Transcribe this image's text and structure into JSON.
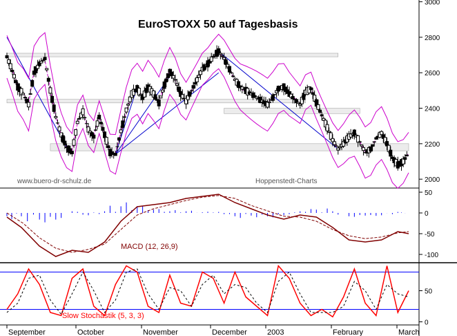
{
  "chart_data": [
    {
      "type": "candlestick",
      "title": "EuroSTOXX 50 auf Tagesbasis",
      "watermarks": [
        "www.buero-dr-schulz.de",
        "Hoppenstedt-Charts"
      ],
      "y_ticks": [
        "3000",
        "2800",
        "2600",
        "2400",
        "2200",
        "2000"
      ],
      "ylim": [
        1950,
        3010
      ],
      "x_labels": [
        "September",
        "October",
        "November",
        "December",
        "2003",
        "February",
        "March"
      ],
      "indicators": [
        "Bollinger Bands",
        "Moving Average",
        "Trendlines",
        "Support/Resistance Zones"
      ],
      "colors": {
        "candle": "#000000",
        "bollinger": "#cc00cc",
        "trendline": "#0000cc",
        "zone": "#808080"
      },
      "close_path": [
        [
          0,
          2690
        ],
        [
          3,
          2610
        ],
        [
          6,
          2520
        ],
        [
          9,
          2480
        ],
        [
          12,
          2420
        ],
        [
          15,
          2600
        ],
        [
          18,
          2650
        ],
        [
          21,
          2680
        ],
        [
          24,
          2500
        ],
        [
          27,
          2350
        ],
        [
          30,
          2250
        ],
        [
          33,
          2180
        ],
        [
          36,
          2150
        ],
        [
          39,
          2320
        ],
        [
          42,
          2380
        ],
        [
          45,
          2280
        ],
        [
          48,
          2240
        ],
        [
          51,
          2350
        ],
        [
          54,
          2250
        ],
        [
          57,
          2150
        ],
        [
          60,
          2140
        ],
        [
          63,
          2270
        ],
        [
          66,
          2390
        ],
        [
          69,
          2480
        ],
        [
          72,
          2510
        ],
        [
          75,
          2460
        ],
        [
          78,
          2520
        ],
        [
          81,
          2480
        ],
        [
          84,
          2430
        ],
        [
          87,
          2530
        ],
        [
          90,
          2610
        ],
        [
          93,
          2560
        ],
        [
          96,
          2480
        ],
        [
          99,
          2440
        ],
        [
          102,
          2500
        ],
        [
          105,
          2560
        ],
        [
          108,
          2620
        ],
        [
          111,
          2650
        ],
        [
          114,
          2690
        ],
        [
          117,
          2720
        ],
        [
          120,
          2680
        ],
        [
          123,
          2620
        ],
        [
          126,
          2560
        ],
        [
          129,
          2520
        ],
        [
          132,
          2500
        ],
        [
          135,
          2480
        ],
        [
          138,
          2460
        ],
        [
          141,
          2440
        ],
        [
          144,
          2420
        ],
        [
          147,
          2460
        ],
        [
          150,
          2510
        ],
        [
          153,
          2520
        ],
        [
          156,
          2480
        ],
        [
          159,
          2450
        ],
        [
          162,
          2420
        ],
        [
          165,
          2490
        ],
        [
          168,
          2510
        ],
        [
          171,
          2430
        ],
        [
          174,
          2360
        ],
        [
          177,
          2290
        ],
        [
          180,
          2220
        ],
        [
          183,
          2170
        ],
        [
          186,
          2200
        ],
        [
          189,
          2240
        ],
        [
          192,
          2260
        ],
        [
          195,
          2210
        ],
        [
          198,
          2150
        ],
        [
          201,
          2170
        ],
        [
          204,
          2230
        ],
        [
          207,
          2260
        ],
        [
          210,
          2200
        ],
        [
          213,
          2120
        ],
        [
          216,
          2080
        ],
        [
          219,
          2100
        ],
        [
          222,
          2150
        ]
      ],
      "support_zones": [
        {
          "from": 2690,
          "to": 2710,
          "x_start": 0,
          "x_end": 183
        },
        {
          "from": 2430,
          "to": 2450,
          "x_start": 0,
          "x_end": 165
        },
        {
          "from": 2370,
          "to": 2400,
          "x_start": 120,
          "x_end": 195
        },
        {
          "from": 2160,
          "to": 2200,
          "x_start": 24,
          "x_end": 222
        }
      ]
    },
    {
      "type": "macd",
      "label": "MACD (12, 26,9)",
      "y_ticks": [
        "50",
        "0",
        "-50",
        "-100"
      ],
      "ylim": [
        -120,
        60
      ],
      "macd_path": [
        [
          0,
          -10
        ],
        [
          8,
          -35
        ],
        [
          18,
          -80
        ],
        [
          27,
          -105
        ],
        [
          36,
          -90
        ],
        [
          45,
          -95
        ],
        [
          54,
          -70
        ],
        [
          63,
          -20
        ],
        [
          72,
          15
        ],
        [
          81,
          20
        ],
        [
          90,
          25
        ],
        [
          99,
          35
        ],
        [
          108,
          40
        ],
        [
          117,
          45
        ],
        [
          126,
          25
        ],
        [
          135,
          10
        ],
        [
          144,
          -5
        ],
        [
          153,
          -15
        ],
        [
          162,
          -5
        ],
        [
          171,
          -10
        ],
        [
          180,
          -35
        ],
        [
          189,
          -65
        ],
        [
          198,
          -70
        ],
        [
          207,
          -65
        ],
        [
          216,
          -45
        ],
        [
          222,
          -50
        ]
      ],
      "signal_path": [
        [
          0,
          0
        ],
        [
          9,
          -25
        ],
        [
          18,
          -60
        ],
        [
          27,
          -85
        ],
        [
          36,
          -95
        ],
        [
          45,
          -88
        ],
        [
          54,
          -75
        ],
        [
          63,
          -40
        ],
        [
          72,
          -5
        ],
        [
          81,
          10
        ],
        [
          90,
          20
        ],
        [
          99,
          30
        ],
        [
          108,
          38
        ],
        [
          117,
          42
        ],
        [
          126,
          35
        ],
        [
          135,
          18
        ],
        [
          144,
          5
        ],
        [
          153,
          -8
        ],
        [
          162,
          -10
        ],
        [
          171,
          -20
        ],
        [
          180,
          -40
        ],
        [
          189,
          -55
        ],
        [
          198,
          -62
        ],
        [
          207,
          -58
        ],
        [
          216,
          -48
        ],
        [
          222,
          -45
        ]
      ]
    },
    {
      "type": "stochastic",
      "label": "Slow Stochastik (5, 3, 3)",
      "y_ticks": [
        "50",
        "0"
      ],
      "ylim": [
        -5,
        95
      ],
      "reference_lines": [
        80,
        20
      ],
      "k_path": [
        [
          0,
          20
        ],
        [
          6,
          45
        ],
        [
          12,
          85
        ],
        [
          18,
          60
        ],
        [
          24,
          15
        ],
        [
          30,
          10
        ],
        [
          36,
          70
        ],
        [
          42,
          85
        ],
        [
          48,
          25
        ],
        [
          54,
          10
        ],
        [
          60,
          60
        ],
        [
          66,
          90
        ],
        [
          72,
          80
        ],
        [
          78,
          25
        ],
        [
          84,
          15
        ],
        [
          90,
          75
        ],
        [
          96,
          30
        ],
        [
          102,
          25
        ],
        [
          108,
          80
        ],
        [
          114,
          70
        ],
        [
          120,
          30
        ],
        [
          126,
          80
        ],
        [
          132,
          40
        ],
        [
          138,
          25
        ],
        [
          144,
          10
        ],
        [
          150,
          90
        ],
        [
          156,
          70
        ],
        [
          162,
          30
        ],
        [
          168,
          10
        ],
        [
          174,
          20
        ],
        [
          180,
          8
        ],
        [
          186,
          40
        ],
        [
          192,
          85
        ],
        [
          198,
          30
        ],
        [
          204,
          10
        ],
        [
          210,
          90
        ],
        [
          216,
          15
        ],
        [
          222,
          50
        ]
      ],
      "d_path": [
        [
          0,
          15
        ],
        [
          6,
          30
        ],
        [
          12,
          70
        ],
        [
          18,
          75
        ],
        [
          24,
          35
        ],
        [
          30,
          12
        ],
        [
          36,
          45
        ],
        [
          42,
          80
        ],
        [
          48,
          50
        ],
        [
          54,
          15
        ],
        [
          60,
          35
        ],
        [
          66,
          80
        ],
        [
          72,
          85
        ],
        [
          78,
          45
        ],
        [
          84,
          20
        ],
        [
          90,
          55
        ],
        [
          96,
          50
        ],
        [
          102,
          25
        ],
        [
          108,
          60
        ],
        [
          114,
          75
        ],
        [
          120,
          45
        ],
        [
          126,
          60
        ],
        [
          132,
          55
        ],
        [
          138,
          30
        ],
        [
          144,
          15
        ],
        [
          150,
          65
        ],
        [
          156,
          80
        ],
        [
          162,
          45
        ],
        [
          168,
          15
        ],
        [
          174,
          15
        ],
        [
          180,
          15
        ],
        [
          186,
          25
        ],
        [
          192,
          65
        ],
        [
          198,
          50
        ],
        [
          204,
          20
        ],
        [
          210,
          60
        ],
        [
          216,
          45
        ],
        [
          222,
          40
        ]
      ]
    }
  ]
}
